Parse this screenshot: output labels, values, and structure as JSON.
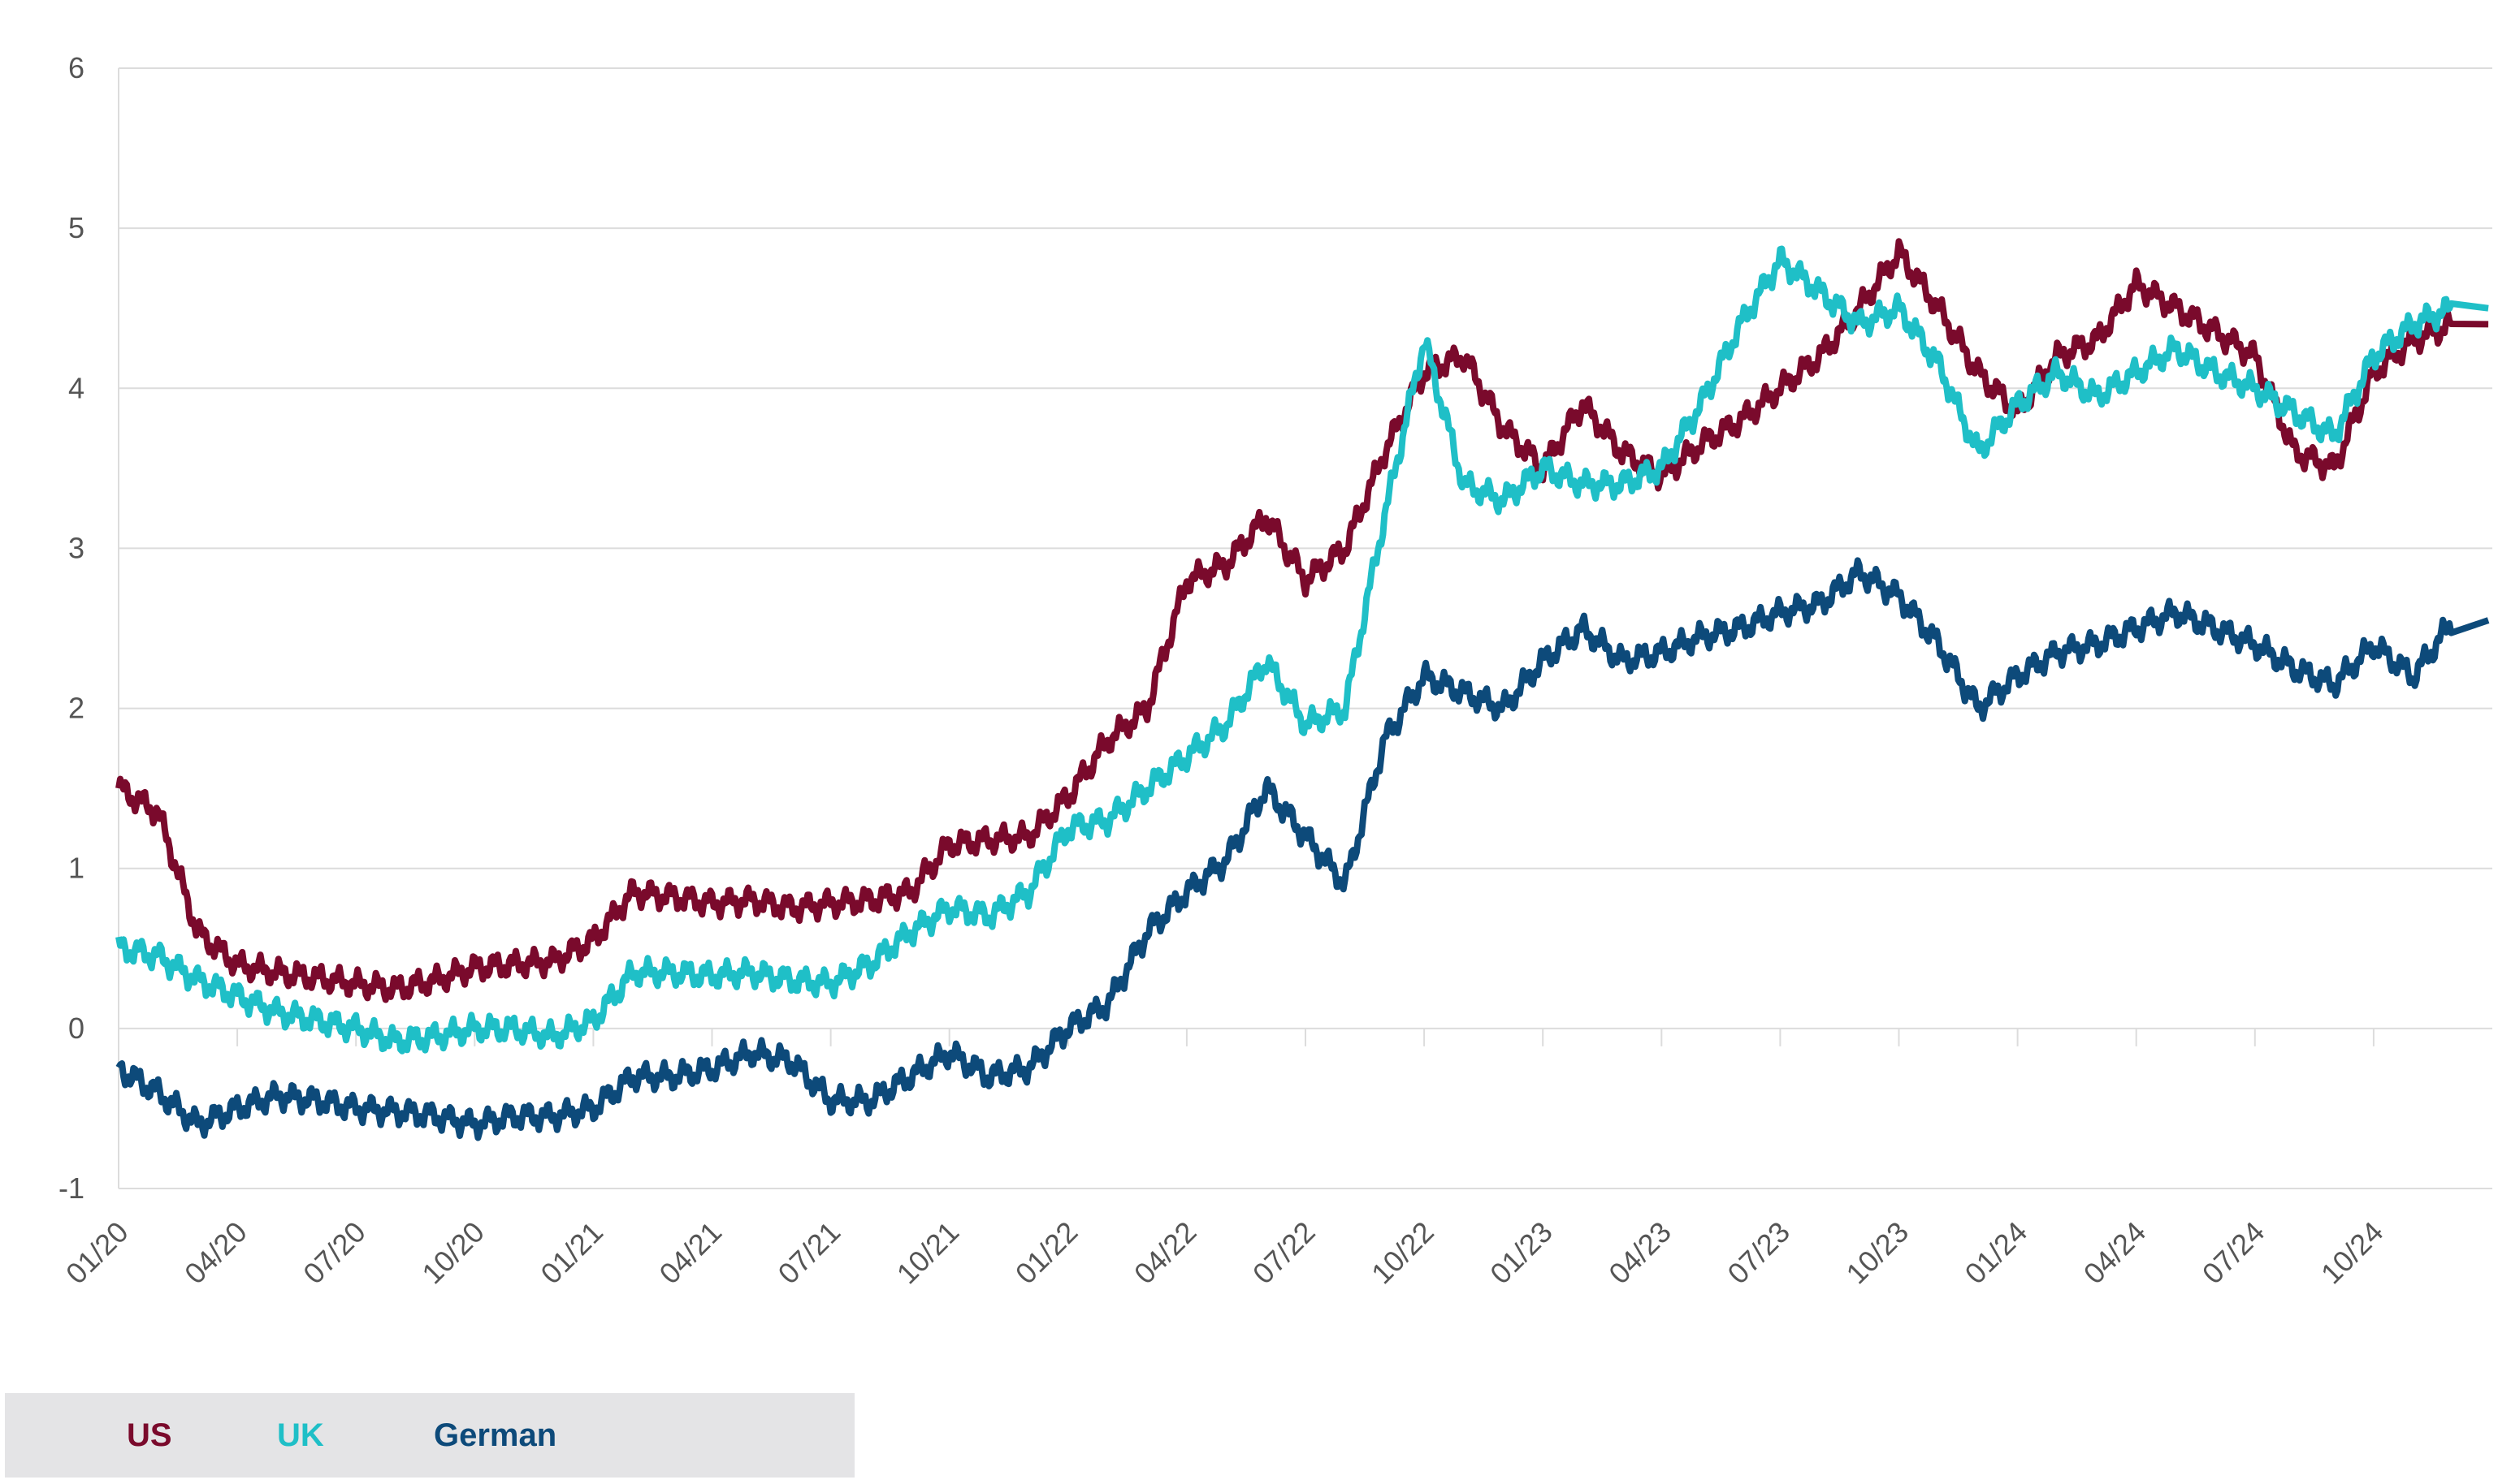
{
  "colors": {
    "US": "#7a0a2c",
    "UK": "#1fbfc7",
    "German": "#0d4a7a",
    "grid": "#dcdcdc"
  },
  "chart_data": {
    "type": "line",
    "title": "",
    "xlabel": "",
    "ylabel": "",
    "ylim": [
      -1,
      6
    ],
    "yticks": [
      "6",
      "5",
      "4",
      "3",
      "2",
      "1",
      "0",
      "-1"
    ],
    "x_range": [
      "2020-01",
      "2024-12-31"
    ],
    "xticks": [
      "01/20",
      "04/20",
      "07/20",
      "10/20",
      "01/21",
      "04/21",
      "07/21",
      "10/21",
      "01/22",
      "04/22",
      "07/22",
      "10/22",
      "01/23",
      "04/23",
      "07/23",
      "10/23",
      "01/24",
      "04/24",
      "07/24",
      "10/24"
    ],
    "grid": true,
    "legend_position": "bottom-left",
    "x": [
      "2020-01",
      "2020-02",
      "2020-03",
      "2020-04",
      "2020-05",
      "2020-06",
      "2020-07",
      "2020-08",
      "2020-09",
      "2020-10",
      "2020-11",
      "2020-12",
      "2021-01",
      "2021-02",
      "2021-03",
      "2021-04",
      "2021-05",
      "2021-06",
      "2021-07",
      "2021-08",
      "2021-09",
      "2021-10",
      "2021-11",
      "2021-12",
      "2022-01",
      "2022-02",
      "2022-03",
      "2022-04",
      "2022-05",
      "2022-06",
      "2022-07",
      "2022-08",
      "2022-09",
      "2022-10",
      "2022-11",
      "2022-12",
      "2023-01",
      "2023-02",
      "2023-03",
      "2023-04",
      "2023-05",
      "2023-06",
      "2023-07",
      "2023-08",
      "2023-09",
      "2023-10",
      "2023-11",
      "2023-12",
      "2024-01",
      "2024-02",
      "2024-03",
      "2024-04",
      "2024-05",
      "2024-06",
      "2024-07",
      "2024-08",
      "2024-09",
      "2024-10",
      "2024-11",
      "2024-12"
    ],
    "series": [
      {
        "name": "US",
        "values": [
          1.5,
          1.35,
          0.6,
          0.4,
          0.35,
          0.32,
          0.28,
          0.25,
          0.3,
          0.38,
          0.4,
          0.42,
          0.55,
          0.85,
          0.82,
          0.78,
          0.8,
          0.75,
          0.78,
          0.8,
          0.85,
          1.15,
          1.18,
          1.2,
          1.45,
          1.8,
          2.0,
          2.8,
          2.9,
          3.2,
          2.8,
          3.0,
          3.6,
          4.1,
          4.2,
          3.75,
          3.5,
          3.9,
          3.6,
          3.45,
          3.65,
          3.8,
          4.0,
          4.2,
          4.5,
          4.85,
          4.5,
          4.1,
          3.85,
          4.2,
          4.3,
          4.65,
          4.5,
          4.35,
          4.2,
          3.6,
          3.5,
          4.1,
          4.3,
          4.4
        ]
      },
      {
        "name": "UK",
        "values": [
          0.5,
          0.45,
          0.3,
          0.2,
          0.1,
          0.05,
          0.0,
          -0.08,
          -0.05,
          0.0,
          0.0,
          -0.05,
          0.05,
          0.35,
          0.35,
          0.33,
          0.35,
          0.3,
          0.28,
          0.4,
          0.6,
          0.75,
          0.7,
          0.85,
          1.25,
          1.3,
          1.5,
          1.7,
          1.9,
          2.3,
          1.9,
          2.0,
          3.2,
          4.3,
          3.4,
          3.3,
          3.5,
          3.4,
          3.4,
          3.5,
          3.9,
          4.4,
          4.8,
          4.6,
          4.4,
          4.5,
          4.15,
          3.6,
          3.9,
          4.1,
          3.95,
          4.1,
          4.25,
          4.1,
          4.0,
          3.85,
          3.7,
          4.2,
          4.4,
          4.5
        ]
      },
      {
        "name": "German",
        "values": [
          -0.25,
          -0.4,
          -0.6,
          -0.5,
          -0.42,
          -0.45,
          -0.5,
          -0.52,
          -0.55,
          -0.6,
          -0.55,
          -0.55,
          -0.5,
          -0.3,
          -0.3,
          -0.25,
          -0.15,
          -0.2,
          -0.45,
          -0.45,
          -0.3,
          -0.15,
          -0.3,
          -0.25,
          0.0,
          0.15,
          0.6,
          0.85,
          1.05,
          1.5,
          1.2,
          0.9,
          1.8,
          2.2,
          2.1,
          2.0,
          2.3,
          2.5,
          2.3,
          2.35,
          2.45,
          2.5,
          2.6,
          2.65,
          2.85,
          2.7,
          2.4,
          2.0,
          2.2,
          2.35,
          2.4,
          2.5,
          2.6,
          2.5,
          2.4,
          2.25,
          2.15,
          2.4,
          2.2,
          2.55
        ]
      }
    ]
  }
}
